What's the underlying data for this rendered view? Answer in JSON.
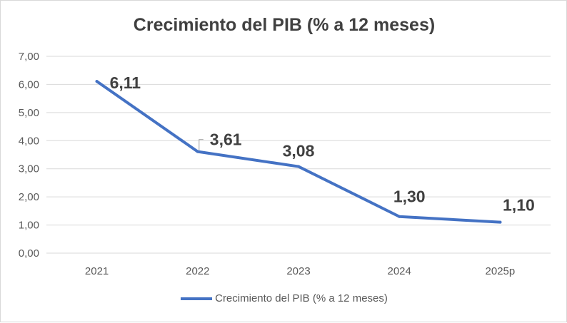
{
  "chart_data": {
    "type": "line",
    "title": "Crecimiento del PIB (% a 12 meses)",
    "categories": [
      "2021",
      "2022",
      "2023",
      "2024",
      "2025p"
    ],
    "series": [
      {
        "name": "Crecimiento del PIB (% a 12 meses)",
        "values": [
          6.11,
          3.61,
          3.08,
          1.3,
          1.1
        ],
        "labels": [
          "6,11",
          "3,61",
          "3,08",
          "1,30",
          "1,10"
        ],
        "color": "#4472c4"
      }
    ],
    "y_ticks": [
      "0,00",
      "1,00",
      "2,00",
      "3,00",
      "4,00",
      "5,00",
      "6,00",
      "7,00"
    ],
    "ylim": [
      0,
      7
    ],
    "xlabel": "",
    "ylabel": "",
    "grid": true,
    "legend_position": "bottom",
    "gridline_color": "#d9d9d9"
  }
}
